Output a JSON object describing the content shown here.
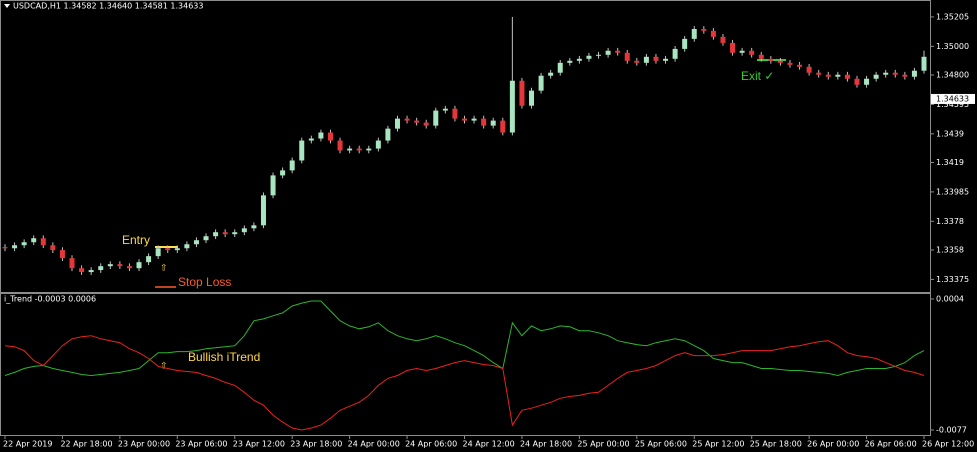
{
  "chart_data": [
    {
      "type": "candlestick",
      "title": "USDCAD,H1 1.34582 1.34640 1.34581 1.34633",
      "categories": [
        "22 Apr 2019",
        null,
        null,
        null,
        null,
        null,
        "22 Apr 18:00",
        null,
        null,
        null,
        null,
        null,
        "23 Apr 00:00",
        null,
        null,
        null,
        null,
        null,
        "23 Apr 06:00",
        null,
        null,
        null,
        null,
        null,
        "23 Apr 12:00",
        null,
        null,
        null,
        null,
        null,
        "23 Apr 18:00",
        null,
        null,
        null,
        null,
        null,
        "24 Apr 00:00",
        null,
        null,
        null,
        null,
        null,
        "24 Apr 06:00",
        null,
        null,
        null,
        null,
        null,
        "24 Apr 12:00",
        null,
        null,
        null,
        null,
        null,
        "24 Apr 18:00",
        null,
        null,
        null,
        null,
        null,
        "25 Apr 00:00",
        null,
        null,
        null,
        null,
        null,
        "25 Apr 06:00",
        null,
        null,
        null,
        null,
        null,
        "25 Apr 12:00",
        null,
        null,
        null,
        null,
        null,
        "25 Apr 18:00",
        null,
        null,
        null,
        null,
        null,
        "26 Apr 00:00",
        null,
        null,
        null,
        null,
        null,
        "26 Apr 06:00",
        null,
        null,
        null,
        null,
        null,
        "26 Apr 12:00"
      ],
      "open": [
        1.336,
        1.33592,
        1.33613,
        1.33634,
        1.33662,
        1.33613,
        1.33579,
        1.33523,
        1.33453,
        1.33426,
        1.3344,
        1.33467,
        1.33481,
        1.33467,
        1.33453,
        1.33495,
        1.33537,
        1.33592,
        1.33579,
        1.33592,
        1.3362,
        1.33648,
        1.33676,
        1.33704,
        1.3369,
        1.33704,
        1.33731,
        1.33752,
        1.33961,
        1.341,
        1.34135,
        1.34204,
        1.34343,
        1.34357,
        1.34399,
        1.34343,
        1.34274,
        1.34287,
        1.34274,
        1.34287,
        1.34343,
        1.34426,
        1.34496,
        1.34482,
        1.34468,
        1.34447,
        1.34552,
        1.34565,
        1.34496,
        1.34482,
        1.34496,
        1.34447,
        1.34482,
        1.34399,
        1.3476,
        1.34586,
        1.34691,
        1.34795,
        1.34816,
        1.34885,
        1.34899,
        1.34913,
        1.34934,
        1.34941,
        1.34969,
        1.34955,
        1.34899,
        1.34885,
        1.34927,
        1.34899,
        1.34913,
        1.34982,
        1.35052,
        1.35121,
        1.35108,
        1.35066,
        1.35024,
        1.34955,
        1.34969,
        1.34941,
        1.34913,
        1.34899,
        1.34885,
        1.34871,
        1.34857,
        1.34816,
        1.34802,
        1.34788,
        1.34802,
        1.34774,
        1.34732,
        1.34774,
        1.34802,
        1.34816,
        1.34802,
        1.34788,
        1.3483
      ],
      "high": [
        1.3362,
        1.33633,
        1.33654,
        1.33682,
        1.33682,
        1.33633,
        1.33599,
        1.33543,
        1.33473,
        1.3346,
        1.33487,
        1.33501,
        1.33501,
        1.33487,
        1.33515,
        1.33557,
        1.33612,
        1.33612,
        1.33612,
        1.3364,
        1.33668,
        1.33696,
        1.33724,
        1.33724,
        1.33724,
        1.33751,
        1.33772,
        1.33981,
        1.3412,
        1.34155,
        1.34224,
        1.34363,
        1.34377,
        1.34419,
        1.34419,
        1.34363,
        1.34307,
        1.34307,
        1.34307,
        1.34363,
        1.34446,
        1.34516,
        1.34516,
        1.34502,
        1.34488,
        1.34572,
        1.34585,
        1.34585,
        1.34516,
        1.34516,
        1.34516,
        1.34502,
        1.34502,
        1.35205,
        1.3478,
        1.34711,
        1.34815,
        1.34836,
        1.34905,
        1.34919,
        1.34933,
        1.34954,
        1.34961,
        1.34989,
        1.34989,
        1.34975,
        1.34919,
        1.34947,
        1.34947,
        1.34933,
        1.35002,
        1.35072,
        1.35141,
        1.35141,
        1.35128,
        1.35086,
        1.35044,
        1.34989,
        1.34989,
        1.34961,
        1.34933,
        1.34919,
        1.34905,
        1.34891,
        1.34877,
        1.34836,
        1.34822,
        1.34822,
        1.34822,
        1.34794,
        1.34794,
        1.34822,
        1.34836,
        1.34836,
        1.34822,
        1.3485,
        1.3497
      ],
      "low": [
        1.33572,
        1.33572,
        1.33593,
        1.33614,
        1.33593,
        1.33559,
        1.33503,
        1.33433,
        1.33406,
        1.33406,
        1.3342,
        1.33447,
        1.33447,
        1.33433,
        1.33433,
        1.33475,
        1.33517,
        1.33559,
        1.33559,
        1.33572,
        1.336,
        1.33628,
        1.33656,
        1.3367,
        1.3367,
        1.33684,
        1.33711,
        1.33732,
        1.33941,
        1.3408,
        1.34115,
        1.34184,
        1.34323,
        1.34337,
        1.34323,
        1.34254,
        1.34254,
        1.34254,
        1.34254,
        1.34267,
        1.34323,
        1.34406,
        1.34462,
        1.34448,
        1.34427,
        1.34427,
        1.34532,
        1.34476,
        1.34462,
        1.34462,
        1.34427,
        1.34427,
        1.34379,
        1.34379,
        1.34566,
        1.34566,
        1.34671,
        1.34775,
        1.34796,
        1.34865,
        1.34879,
        1.34893,
        1.34914,
        1.34921,
        1.34935,
        1.34879,
        1.34865,
        1.34865,
        1.34879,
        1.34879,
        1.34893,
        1.34962,
        1.35032,
        1.35088,
        1.35046,
        1.35004,
        1.34935,
        1.34935,
        1.34921,
        1.34893,
        1.34879,
        1.34865,
        1.34851,
        1.34837,
        1.34796,
        1.34782,
        1.34768,
        1.34768,
        1.34754,
        1.34712,
        1.34712,
        1.34754,
        1.34782,
        1.34782,
        1.34768,
        1.34768,
        1.3481
      ],
      "close": [
        1.33592,
        1.33613,
        1.33634,
        1.33662,
        1.33613,
        1.33579,
        1.33523,
        1.33453,
        1.33426,
        1.3344,
        1.33467,
        1.33481,
        1.33467,
        1.33453,
        1.33495,
        1.33537,
        1.33592,
        1.33579,
        1.33592,
        1.3362,
        1.33648,
        1.33676,
        1.33704,
        1.3369,
        1.33704,
        1.33731,
        1.33752,
        1.33961,
        1.341,
        1.34135,
        1.34204,
        1.34343,
        1.34357,
        1.34399,
        1.34343,
        1.34274,
        1.34287,
        1.34274,
        1.34287,
        1.34343,
        1.34426,
        1.34496,
        1.34482,
        1.34468,
        1.34447,
        1.34552,
        1.34565,
        1.34496,
        1.34482,
        1.34496,
        1.34447,
        1.34482,
        1.34399,
        1.3476,
        1.34586,
        1.34691,
        1.34795,
        1.34816,
        1.34885,
        1.34899,
        1.34913,
        1.34934,
        1.34941,
        1.34969,
        1.34955,
        1.34899,
        1.34885,
        1.34927,
        1.34899,
        1.34913,
        1.34982,
        1.35052,
        1.35121,
        1.35108,
        1.35066,
        1.35024,
        1.34955,
        1.34969,
        1.34941,
        1.34913,
        1.34899,
        1.34885,
        1.34871,
        1.34857,
        1.34816,
        1.34802,
        1.34788,
        1.34802,
        1.34774,
        1.34732,
        1.34774,
        1.34802,
        1.34816,
        1.34802,
        1.34788,
        1.3483,
        1.34927
      ],
      "up_color": "#a8e6c1",
      "down_color": "#e8353a",
      "wick_color": "#c0c0c0",
      "ylim": [
        1.33287,
        1.35316
      ],
      "yticks": [
        1.35205,
        {
          "value": 1.35,
          "label": "1.35000"
        },
        {
          "value": 1.348,
          "label": "1.34800"
        },
        1.34595,
        1.3439,
        1.3419,
        1.33985,
        1.3378,
        1.3358,
        1.33375
      ],
      "current_price": 1.34633,
      "annotations": [
        "Entry",
        "⇧",
        "Stop Loss",
        "Exit ✓"
      ]
    },
    {
      "type": "line",
      "title": "i_Trend -0.0003 0.0006",
      "series": [
        {
          "color": "#2db52d",
          "values": [
            -0.00433,
            -0.00414,
            -0.0039,
            -0.00377,
            -0.00371,
            -0.0039,
            -0.00402,
            -0.00414,
            -0.00427,
            -0.00433,
            -0.00427,
            -0.0042,
            -0.00414,
            -0.00402,
            -0.0039,
            -0.00341,
            -0.00292,
            -0.00292,
            -0.00285,
            -0.00285,
            -0.00279,
            -0.00267,
            -0.00261,
            -0.00255,
            -0.00249,
            -0.00187,
            -0.00095,
            -0.00083,
            -0.00064,
            -0.00046,
            -3e-05,
            0.00015,
            0.00028,
            0.00028,
            -0.00034,
            -0.00095,
            -0.00126,
            -0.00144,
            -0.00132,
            -0.00107,
            -0.00156,
            -0.00187,
            -0.00206,
            -0.00218,
            -0.00206,
            -0.00187,
            -0.00206,
            -0.0023,
            -0.00249,
            -0.00279,
            -0.0031,
            -0.00353,
            -0.0039,
            -0.00107,
            -0.00187,
            -0.00126,
            -0.00156,
            -0.00144,
            -0.00126,
            -0.00132,
            -0.00156,
            -0.00156,
            -0.00169,
            -0.00187,
            -0.00218,
            -0.0023,
            -0.00242,
            -0.00249,
            -0.0023,
            -0.00218,
            -0.00206,
            -0.00218,
            -0.00249,
            -0.00279,
            -0.00328,
            -0.00341,
            -0.00353,
            -0.00353,
            -0.00371,
            -0.0039,
            -0.0039,
            -0.00396,
            -0.00402,
            -0.00402,
            -0.00408,
            -0.00414,
            -0.0042,
            -0.00433,
            -0.00414,
            -0.00402,
            -0.0039,
            -0.0039,
            -0.0039,
            -0.00377,
            -0.00353,
            -0.0031,
            -0.00279
          ]
        },
        {
          "color": "#e8231e",
          "values": [
            -0.00249,
            -0.00255,
            -0.00279,
            -0.00341,
            -0.00371,
            -0.0031,
            -0.00249,
            -0.00206,
            -0.00193,
            -0.00187,
            -0.00206,
            -0.00218,
            -0.0023,
            -0.00267,
            -0.00292,
            -0.00328,
            -0.00377,
            -0.0039,
            -0.00402,
            -0.00408,
            -0.00414,
            -0.00433,
            -0.00451,
            -0.00476,
            -0.00494,
            -0.00537,
            -0.00586,
            -0.00617,
            -0.00678,
            -0.00721,
            -0.00758,
            -0.0077,
            -0.00758,
            -0.0074,
            -0.00697,
            -0.00648,
            -0.00623,
            -0.00599,
            -0.00556,
            -0.00494,
            -0.00451,
            -0.00433,
            -0.00402,
            -0.0039,
            -0.00402,
            -0.0039,
            -0.00371,
            -0.00353,
            -0.00341,
            -0.00353,
            -0.00365,
            -0.00371,
            -0.0039,
            -0.0074,
            -0.00648,
            -0.00635,
            -0.00617,
            -0.00599,
            -0.00574,
            -0.00562,
            -0.00556,
            -0.00543,
            -0.00537,
            -0.00494,
            -0.00451,
            -0.00414,
            -0.00402,
            -0.0039,
            -0.00371,
            -0.00341,
            -0.0031,
            -0.00292,
            -0.0031,
            -0.0031,
            -0.0031,
            -0.00304,
            -0.00292,
            -0.00279,
            -0.00279,
            -0.00279,
            -0.00279,
            -0.00267,
            -0.00255,
            -0.00249,
            -0.00236,
            -0.00224,
            -0.00218,
            -0.00249,
            -0.00292,
            -0.0031,
            -0.00316,
            -0.00328,
            -0.00353,
            -0.00377,
            -0.00402,
            -0.00414,
            -0.00433
          ]
        }
      ],
      "ylim": [
        -0.00801,
        0.00071
      ],
      "yticks": [
        0.0004,
        -0.0077
      ],
      "annotations": [
        "Bullish iTrend",
        "⇧"
      ]
    }
  ]
}
